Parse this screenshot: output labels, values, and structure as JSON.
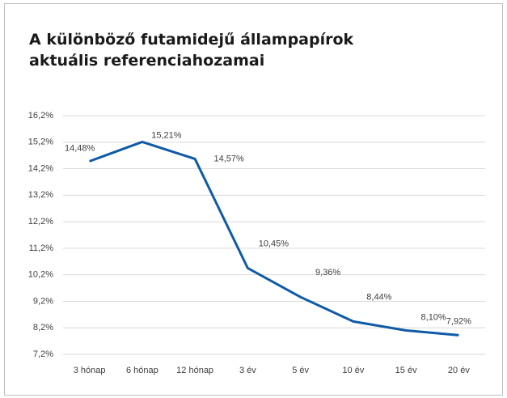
{
  "chart_data": {
    "type": "line",
    "title": [
      "A különböző futamidejű állampapírok",
      "aktuális referenciahozamai"
    ],
    "categories": [
      "3 hónap",
      "6 hónap",
      "12 hónap",
      "3 év",
      "5 év",
      "10 év",
      "15 év",
      "20 év"
    ],
    "series": [
      {
        "color": "#0f5ba7",
        "values": [
          14.48,
          15.21,
          14.57,
          10.45,
          9.36,
          8.44,
          8.1,
          7.92
        ],
        "value_labels": [
          "14,48%",
          "15,21%",
          "14,57%",
          "10,45%",
          "9,36%",
          "8,44%",
          "8,10%",
          "7,92%"
        ]
      }
    ],
    "ylim": [
      7.2,
      16.2
    ],
    "yticks": [
      {
        "value": 7.2,
        "label": "7,2%"
      },
      {
        "value": 8.2,
        "label": "8,2%"
      },
      {
        "value": 9.2,
        "label": "9,2%"
      },
      {
        "value": 10.2,
        "label": "10,2%"
      },
      {
        "value": 11.2,
        "label": "11,2%"
      },
      {
        "value": 12.2,
        "label": "12,2%"
      },
      {
        "value": 13.2,
        "label": "13,2%"
      },
      {
        "value": 14.2,
        "label": "14,2%"
      },
      {
        "value": 15.2,
        "label": "15,2%"
      },
      {
        "value": 16.2,
        "label": "16,2%"
      }
    ],
    "grid": true
  }
}
